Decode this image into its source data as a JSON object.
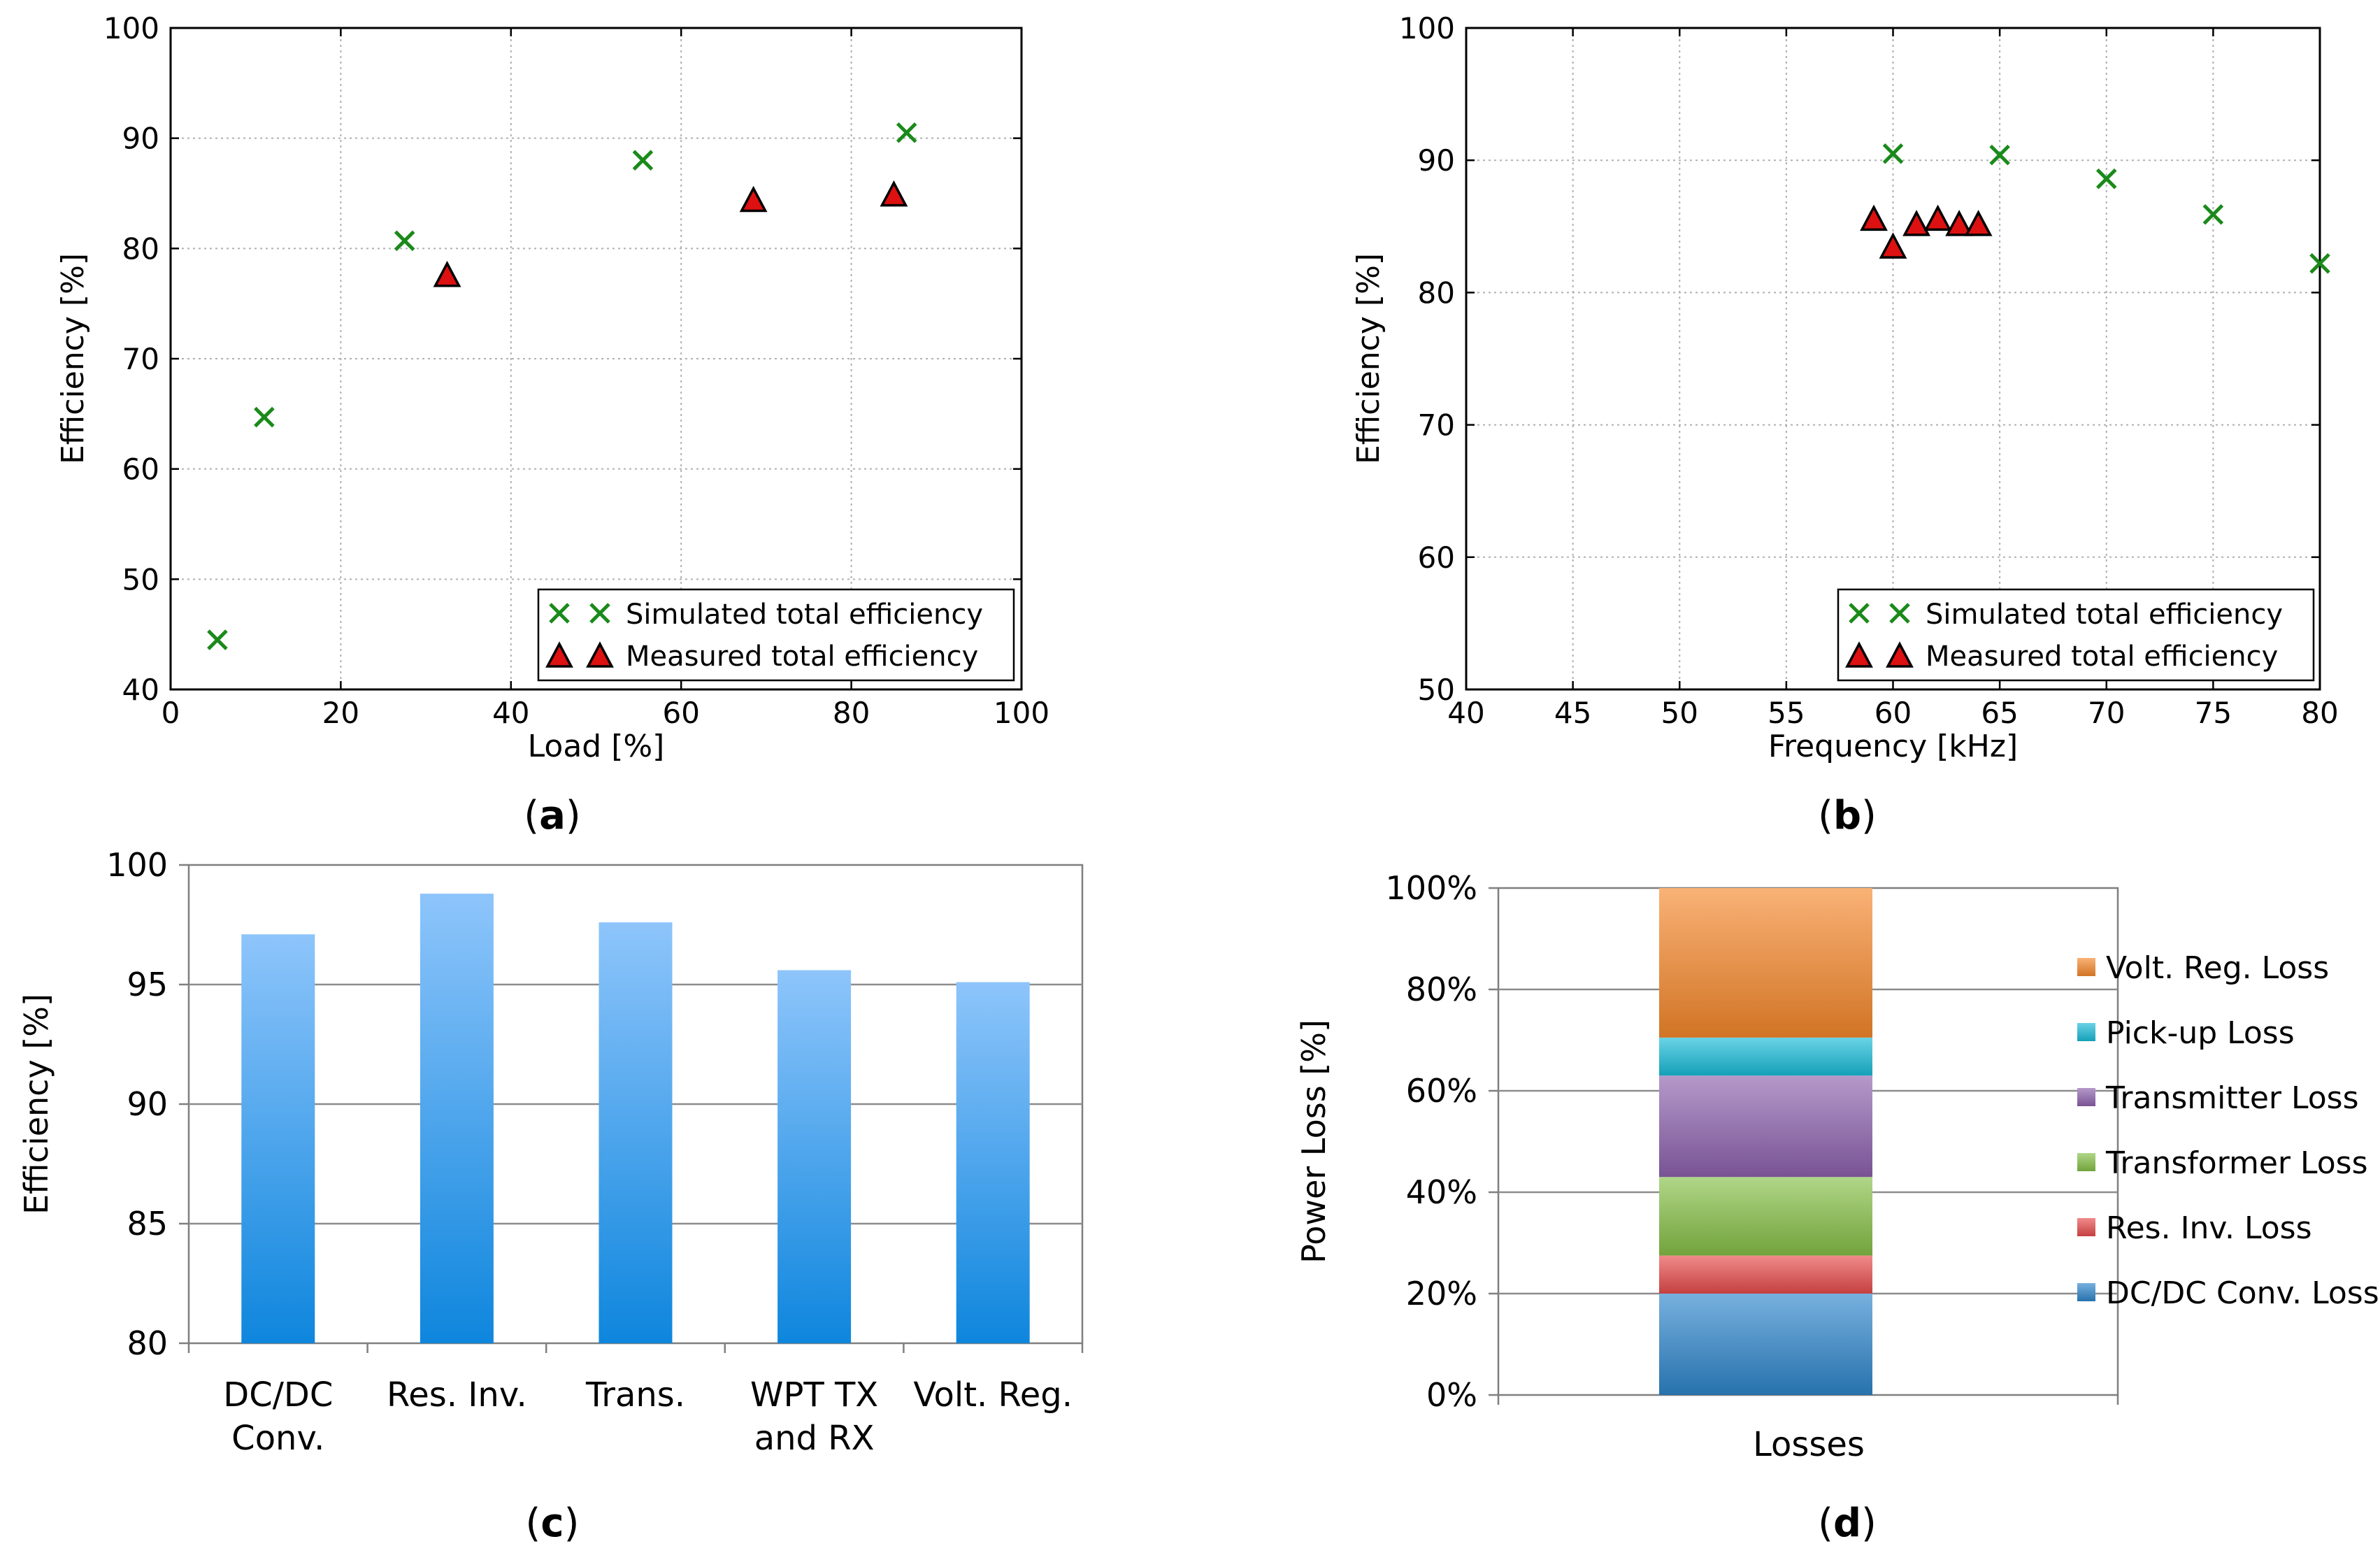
{
  "chart_data": [
    {
      "panel_label": "a",
      "type": "scatter",
      "xlabel": "Load [%]",
      "ylabel": "Efficiency [%]",
      "xlim": [
        0,
        100
      ],
      "ylim": [
        40,
        100
      ],
      "xticks": [
        "0",
        "20",
        "40",
        "60",
        "80",
        "100"
      ],
      "yticks": [
        "40",
        "50",
        "60",
        "70",
        "80",
        "90",
        "100"
      ],
      "grid": true,
      "legend_position": "bottom-right",
      "series": [
        {
          "name": "Simulated total efficiency",
          "marker": "x",
          "color": "#1a8a1a",
          "x": [
            5.5,
            11,
            27.5,
            55.5,
            86.5
          ],
          "y": [
            44.5,
            64.7,
            80.7,
            88,
            90.5
          ]
        },
        {
          "name": "Measured total efficiency",
          "marker": "triangle",
          "color": "#dd1111",
          "x": [
            32.5,
            68.5,
            85
          ],
          "y": [
            77.5,
            84.3,
            84.8
          ]
        }
      ]
    },
    {
      "panel_label": "b",
      "type": "scatter",
      "xlabel": "Frequency [kHz]",
      "ylabel": "Efficiency [%]",
      "xlim": [
        40,
        80
      ],
      "ylim": [
        50,
        100
      ],
      "xticks": [
        "40",
        "45",
        "50",
        "55",
        "60",
        "65",
        "70",
        "75",
        "80"
      ],
      "yticks": [
        "50",
        "60",
        "70",
        "80",
        "90",
        "100"
      ],
      "grid": true,
      "legend_position": "bottom-right",
      "series": [
        {
          "name": "Simulated total efficiency",
          "marker": "x",
          "color": "#1a8a1a",
          "x": [
            60,
            65,
            70,
            75,
            80
          ],
          "y": [
            90.5,
            90.4,
            88.6,
            85.9,
            82.2
          ]
        },
        {
          "name": "Measured total efficiency",
          "marker": "triangle",
          "color": "#dd1111",
          "x": [
            59.1,
            60,
            61.1,
            62.1,
            63.1,
            64
          ],
          "y": [
            85.5,
            83.4,
            85.1,
            85.5,
            85.1,
            85.1
          ]
        }
      ]
    },
    {
      "panel_label": "c",
      "type": "bar",
      "xlabel": "",
      "ylabel": "Efficiency [%]",
      "ylim": [
        80,
        100
      ],
      "yticks": [
        "80",
        "85",
        "90",
        "95",
        "100"
      ],
      "grid": true,
      "categories": [
        [
          "DC/DC",
          "Conv."
        ],
        [
          "Res. Inv."
        ],
        [
          "Trans."
        ],
        [
          "WPT TX",
          "and RX"
        ],
        [
          "Volt. Reg."
        ]
      ],
      "values": [
        97.1,
        98.8,
        97.6,
        95.6,
        95.1
      ]
    },
    {
      "panel_label": "d",
      "type": "bar",
      "stacked": true,
      "xlabel": "",
      "ylabel": "Power Loss [%]",
      "ylim": [
        0,
        100
      ],
      "yticks": [
        "0%",
        "20%",
        "40%",
        "60%",
        "80%",
        "100%"
      ],
      "grid": true,
      "legend_position": "right",
      "categories": [
        "Losses"
      ],
      "series": [
        {
          "name": "DC/DC Conv. Loss",
          "value": 20,
          "color": "#2e86cc"
        },
        {
          "name": "Res. Inv. Loss",
          "value": 7.5,
          "color": "#e84b4b"
        },
        {
          "name": "Transformer Loss",
          "value": 15.5,
          "color": "#86c046"
        },
        {
          "name": "Transmitter Loss",
          "value": 20,
          "color": "#8d62ae"
        },
        {
          "name": "Pick-up Loss",
          "value": 7.5,
          "color": "#19bcd8"
        },
        {
          "name": "Volt. Reg. Loss",
          "value": 29.5,
          "color": "#f6892c"
        }
      ]
    }
  ]
}
